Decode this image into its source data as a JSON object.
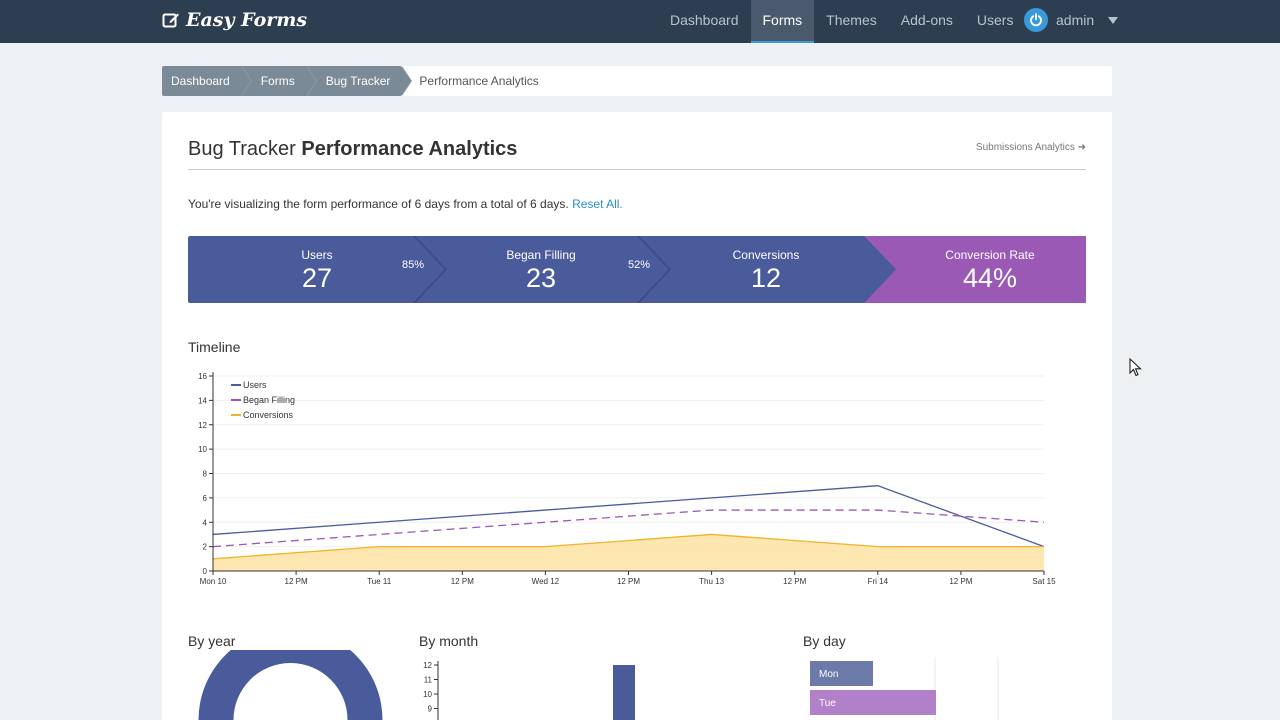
{
  "app": {
    "brand": "Easy Forms"
  },
  "nav": {
    "items": [
      {
        "label": "Dashboard"
      },
      {
        "label": "Forms"
      },
      {
        "label": "Themes"
      },
      {
        "label": "Add-ons"
      },
      {
        "label": "Users"
      }
    ],
    "active": "Forms",
    "user": "admin"
  },
  "breadcrumb": {
    "items": [
      "Dashboard",
      "Forms",
      "Bug Tracker"
    ],
    "current": "Performance Analytics"
  },
  "page": {
    "title_prefix": "Bug Tracker",
    "title_bold": "Performance Analytics",
    "submissions_link": "Submissions Analytics ➜",
    "summary": "You're visualizing the form performance of 6 days from a total of 6 days.",
    "reset_link": "Reset All."
  },
  "colors": {
    "navbar": "#2c3e50",
    "funnel_blue": "#4a5b9b",
    "funnel_purple": "#9b59b6",
    "users_line": "#4a5b9b",
    "began_line": "#9b59b6",
    "conversions_line": "#f0b429",
    "conversions_fill": "#fde3a7",
    "link": "#2d8ccf"
  },
  "funnel": {
    "steps": [
      {
        "label": "Users",
        "value": "27"
      },
      {
        "label": "Began Filling",
        "value": "23"
      },
      {
        "label": "Conversions",
        "value": "12"
      },
      {
        "label": "Conversion Rate",
        "value": "44%"
      }
    ],
    "percents": [
      "85%",
      "52%"
    ]
  },
  "sections": {
    "timeline": "Timeline",
    "by_year": "By year",
    "by_month": "By month",
    "by_day": "By day"
  },
  "chart_data": [
    {
      "type": "line",
      "title": "Timeline",
      "x_ticks": [
        "Mon 10",
        "12 PM",
        "Tue 11",
        "12 PM",
        "Wed 12",
        "12 PM",
        "Thu 13",
        "12 PM",
        "Fri 14",
        "12 PM",
        "Sat 15"
      ],
      "x": [
        "Mon 10",
        "Tue 11",
        "Wed 12",
        "Thu 13",
        "Fri 14",
        "Sat 15"
      ],
      "ylim": [
        0,
        16
      ],
      "y_ticks": [
        0,
        2,
        4,
        6,
        8,
        10,
        12,
        14,
        16
      ],
      "legend_position": "top-left",
      "series": [
        {
          "name": "Users",
          "values": [
            3,
            4,
            5,
            6,
            7,
            2
          ]
        },
        {
          "name": "Began Filling",
          "values": [
            2,
            3,
            4,
            5,
            5,
            4
          ]
        },
        {
          "name": "Conversions",
          "values": [
            1,
            2,
            2,
            3,
            2,
            2
          ]
        }
      ]
    },
    {
      "type": "bar",
      "title": "By month",
      "y_ticks": [
        9,
        10,
        11,
        12
      ],
      "values": [
        12
      ]
    },
    {
      "type": "bar",
      "orientation": "horizontal",
      "title": "By day",
      "categories": [
        "Mon",
        "Tue"
      ]
    }
  ]
}
